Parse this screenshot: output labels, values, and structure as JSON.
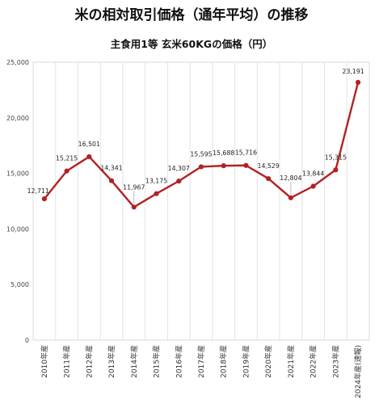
{
  "chart_data": {
    "type": "line",
    "title": "米の相対取引価格（通年平均）の推移",
    "subtitle": "主食用1等 玄米60KGの価格（円）",
    "categories": [
      "2010年産",
      "2011年産",
      "2012年産",
      "2013年産",
      "2014年産",
      "2015年産",
      "2016年産",
      "2017年産",
      "2018年産",
      "2019年産",
      "2020年産",
      "2021年産",
      "2022年産",
      "2023年産",
      "2024年産(速報)"
    ],
    "values": [
      12711,
      15215,
      16501,
      14341,
      11967,
      13175,
      14307,
      15595,
      15688,
      15716,
      14529,
      12804,
      13844,
      15315,
      23191
    ],
    "data_labels": [
      "12,711",
      "15,215",
      "16,501",
      "14,341",
      "11,967",
      "13,175",
      "14,307",
      "15,595",
      "15,688",
      "15,716",
      "14,529",
      "12,804",
      "13,844",
      "15,315",
      "23,191"
    ],
    "yticks": [
      "0",
      "5,000",
      "10,000",
      "15,000",
      "20,000",
      "25,000"
    ],
    "ylim": [
      0,
      25000
    ],
    "grid": "vertical",
    "legend": "none",
    "line_color": "#b22222"
  }
}
